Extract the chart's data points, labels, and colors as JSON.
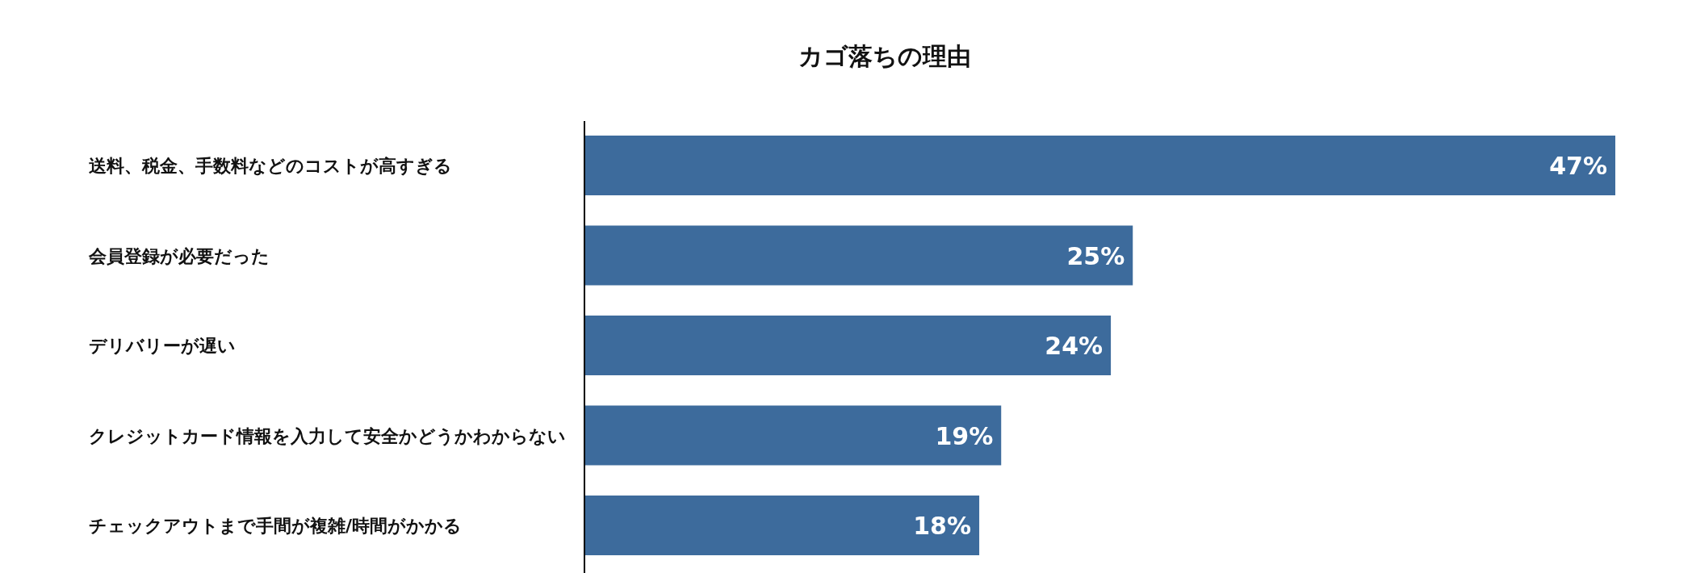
{
  "chart_data": {
    "type": "bar",
    "orientation": "horizontal",
    "title": "カゴ落ちの理由",
    "categories": [
      "送料、税金、手数料などのコストが高すぎる",
      "会員登録が必要だった",
      "デリバリーが遅い",
      "クレジットカード情報を入力して安全かどうかわからない",
      "チェックアウトまで手間が複雑/時間がかかる"
    ],
    "values": [
      47,
      25,
      24,
      19,
      18
    ],
    "value_labels": [
      "47%",
      "25%",
      "24%",
      "19%",
      "18%"
    ],
    "color": "#3d6b9c"
  }
}
